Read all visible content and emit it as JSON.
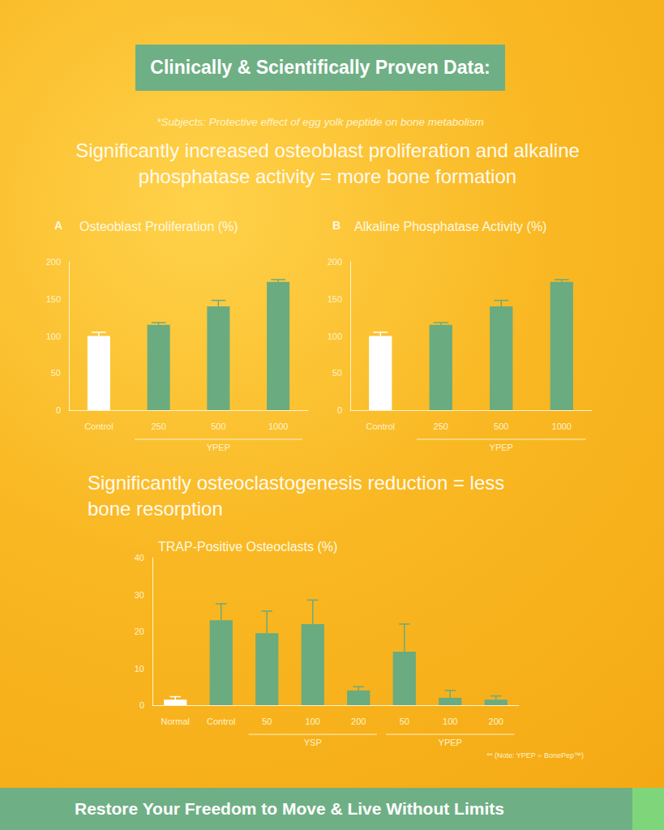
{
  "header": {
    "badge": "Clinically & Scientifically Proven Data:",
    "subtitle": "*Subjects: Protective effect of egg yolk peptide on bone metabolism",
    "headline": "Significantly increased osteoblast proliferation and alkaline phosphatase activity = more bone formation"
  },
  "chart_data": [
    {
      "type": "bar",
      "title": "Osteoblast Proliferation (%)",
      "panel_label": "A",
      "categories": [
        "Control",
        "250",
        "500",
        "1000"
      ],
      "values": [
        100,
        115,
        140,
        173
      ],
      "errors": [
        5,
        3,
        8,
        3
      ],
      "colors": [
        "#ffffff",
        "#6aab80",
        "#6aab80",
        "#6aab80"
      ],
      "groups": [
        {
          "label": "YPEP",
          "first": 1,
          "last": 3
        }
      ],
      "ylim": [
        0,
        200
      ],
      "yticks": [
        0,
        50,
        100,
        150,
        200
      ],
      "grid": false
    },
    {
      "type": "bar",
      "title": "Alkaline Phosphatase Activity (%)",
      "panel_label": "B",
      "categories": [
        "Control",
        "250",
        "500",
        "1000"
      ],
      "values": [
        100,
        115,
        140,
        173
      ],
      "errors": [
        5,
        3,
        8,
        3
      ],
      "colors": [
        "#ffffff",
        "#6aab80",
        "#6aab80",
        "#6aab80"
      ],
      "groups": [
        {
          "label": "YPEP",
          "first": 1,
          "last": 3
        }
      ],
      "ylim": [
        0,
        200
      ],
      "yticks": [
        0,
        50,
        100,
        150,
        200
      ],
      "grid": false
    },
    {
      "type": "bar",
      "title": "TRAP-Positive Osteoclasts (%)",
      "categories": [
        "Normal",
        "Control",
        "50",
        "100",
        "200",
        "50",
        "100",
        "200"
      ],
      "values": [
        1.5,
        23,
        19.5,
        22,
        4,
        14.5,
        2,
        1.5
      ],
      "errors": [
        0.8,
        4.5,
        6,
        6.5,
        1,
        7.5,
        2,
        1
      ],
      "colors": [
        "#ffffff",
        "#6aab80",
        "#6aab80",
        "#6aab80",
        "#6aab80",
        "#6aab80",
        "#6aab80",
        "#6aab80"
      ],
      "groups": [
        {
          "label": "YSP",
          "first": 2,
          "last": 4
        },
        {
          "label": "YPEP",
          "first": 5,
          "last": 7
        }
      ],
      "ylim": [
        0,
        40
      ],
      "yticks": [
        0,
        10,
        20,
        30,
        40
      ],
      "grid": false,
      "note": "** (Note: YPEP = BonePep™)"
    }
  ],
  "section_headline": "Significantly osteoclastogenesis reduction = less bone resorption",
  "footer": "Restore Your Freedom to Move & Live Without Limits"
}
